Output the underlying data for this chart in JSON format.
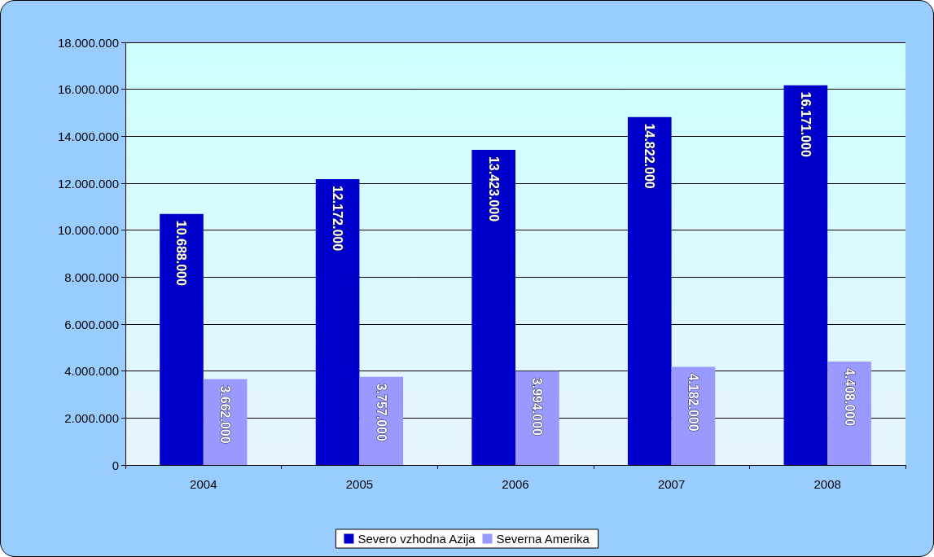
{
  "chart_data": {
    "type": "bar",
    "categories": [
      "2004",
      "2005",
      "2006",
      "2007",
      "2008"
    ],
    "series": [
      {
        "name": "Severo vzhodna Azija",
        "color": "#0000cc",
        "values": [
          10688000,
          12172000,
          13423000,
          14822000,
          16171000
        ],
        "value_labels": [
          "10.688.000",
          "12.172.000",
          "13.423.000",
          "14.822.000",
          "16.171.000"
        ]
      },
      {
        "name": "Severna Amerika",
        "color": "#9999ff",
        "values": [
          3662000,
          3757000,
          3994000,
          4182000,
          4408000
        ],
        "value_labels": [
          "3.662.000",
          "3.757.000",
          "3.994.000",
          "4.182.000",
          "4.408.000"
        ]
      }
    ],
    "ylim": [
      0,
      18000000
    ],
    "yticks": [
      {
        "value": 0,
        "label": "0"
      },
      {
        "value": 2000000,
        "label": "2.000.000"
      },
      {
        "value": 4000000,
        "label": "4.000.000"
      },
      {
        "value": 6000000,
        "label": "6.000.000"
      },
      {
        "value": 8000000,
        "label": "8.000.000"
      },
      {
        "value": 10000000,
        "label": "10.000.000"
      },
      {
        "value": 12000000,
        "label": "12.000.000"
      },
      {
        "value": 14000000,
        "label": "14.000.000"
      },
      {
        "value": 16000000,
        "label": "16.000.000"
      },
      {
        "value": 18000000,
        "label": "18.000.000"
      }
    ],
    "grid": "y",
    "legend": "bottom"
  }
}
